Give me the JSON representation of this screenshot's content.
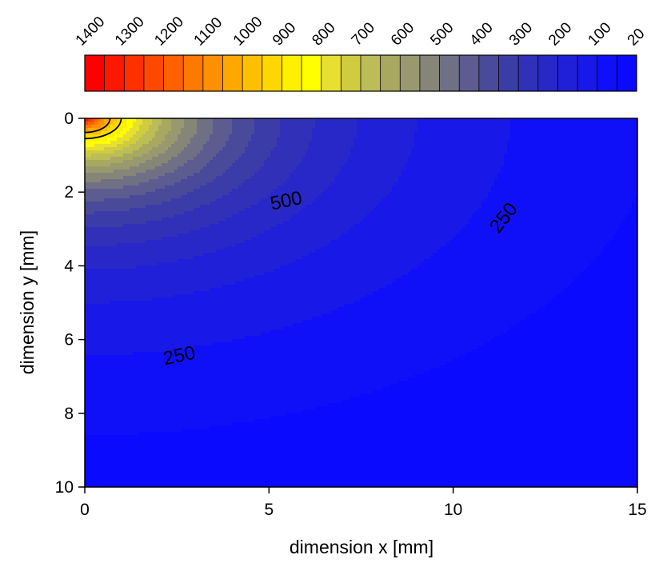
{
  "chart_data": {
    "type": "contour",
    "xlabel": "dimension x  [mm]",
    "ylabel": "dimension y [mm]",
    "xlim": [
      0,
      15
    ],
    "ylim": [
      0,
      10
    ],
    "y_inverted": true,
    "x_ticks": [
      "0",
      "5",
      "10",
      "15"
    ],
    "y_ticks": [
      "0",
      "2",
      "4",
      "6",
      "8",
      "10"
    ],
    "colorbar": {
      "placement": "top",
      "levels": [
        1400,
        1350,
        1300,
        1250,
        1200,
        1150,
        1100,
        1050,
        1000,
        950,
        900,
        850,
        800,
        750,
        700,
        650,
        600,
        550,
        500,
        450,
        400,
        350,
        300,
        250,
        200,
        150,
        100,
        60,
        20
      ],
      "tick_labels": [
        "1400",
        "1300",
        "1200",
        "1100",
        "1000",
        "900",
        "800",
        "700",
        "600",
        "500",
        "400",
        "300",
        "200",
        "100",
        "20"
      ],
      "colors": [
        "#ff0000",
        "#ff1800",
        "#ff3000",
        "#ff4800",
        "#ff6000",
        "#ff7800",
        "#ff9000",
        "#ffa800",
        "#ffc000",
        "#ffd800",
        "#fff000",
        "#ffff00",
        "#e8e030",
        "#d0cc40",
        "#bcbc58",
        "#a8a860",
        "#999970",
        "#858578",
        "#707085",
        "#5c5c90",
        "#4a4a9a",
        "#3c3ca8",
        "#3030b8",
        "#2828c8",
        "#2020d8",
        "#1818e8",
        "#1010f8",
        "#0a0aff"
      ]
    },
    "contour_lines": [
      {
        "level": 1000,
        "label": ""
      },
      {
        "level": 900,
        "label": ""
      },
      {
        "level": 500,
        "label": "500"
      },
      {
        "level": 250,
        "label": "250"
      }
    ],
    "contour_labels": [
      {
        "text": "500",
        "x": 5.5,
        "y": 2.4
      },
      {
        "text": "250",
        "x": 2.6,
        "y": 6.6
      },
      {
        "text": "250",
        "x": 11.5,
        "y": 2.8
      }
    ],
    "source": {
      "x": 0,
      "y": 0,
      "peak": 1400,
      "ambient": 20
    }
  }
}
